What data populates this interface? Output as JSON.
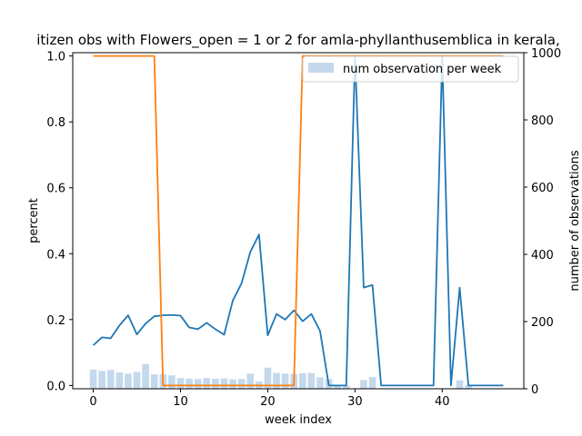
{
  "chart_data": {
    "type": "line",
    "title": "itizen obs with Flowers_open = 1 or 2 for amla-phyllanthusemblica in kerala,",
    "xlabel": "week index",
    "ylabel_left": "percent",
    "ylabel_right": "number of observations",
    "xlim": [
      -2.35,
      49.35
    ],
    "ylim_left": [
      -0.01,
      1.01
    ],
    "ylim_right": [
      0,
      1000
    ],
    "x_ticks": [
      0,
      10,
      20,
      30,
      40
    ],
    "y_ticks_left": [
      "0.0",
      "0.2",
      "0.4",
      "0.6",
      "0.8",
      "1.0"
    ],
    "y_ticks_right": [
      "0",
      "200",
      "400",
      "600",
      "800",
      "1000"
    ],
    "grid": false,
    "legend": {
      "placement": "top-right",
      "entries": [
        "num observation per week"
      ]
    },
    "colors": {
      "blue_line": "#1f77b4",
      "orange_line": "#ff7f0e",
      "bars": "#c5d9ec"
    },
    "series": [
      {
        "axis": "left",
        "color": "#1f77b4",
        "x": [
          0,
          1,
          2,
          3,
          4,
          5,
          6,
          7,
          8,
          9,
          10,
          11,
          12,
          13,
          14,
          15,
          16,
          17,
          18,
          19,
          20,
          21,
          22,
          23,
          24,
          25,
          26,
          27,
          28,
          29,
          30,
          31,
          32,
          33,
          34,
          35,
          36,
          37,
          38,
          39,
          40,
          41,
          42,
          43,
          44,
          45,
          46,
          47
        ],
        "values": [
          0.122,
          0.146,
          0.143,
          0.182,
          0.213,
          0.155,
          0.188,
          0.21,
          0.213,
          0.214,
          0.212,
          0.176,
          0.171,
          0.19,
          0.171,
          0.154,
          0.258,
          0.31,
          0.405,
          0.458,
          0.152,
          0.217,
          0.2,
          0.228,
          0.195,
          0.217,
          0.165,
          0.0,
          0.0,
          0.0,
          1.0,
          0.297,
          0.305,
          0.0,
          0.0,
          0.0,
          0.0,
          0.0,
          0.0,
          0.0,
          1.0,
          0.0,
          0.297,
          0.0,
          0.0,
          0.0,
          0.0,
          0.0
        ]
      },
      {
        "axis": "left",
        "color": "#ff7f0e",
        "x": [
          0,
          1,
          2,
          3,
          4,
          5,
          6,
          7,
          8,
          9,
          10,
          11,
          12,
          13,
          14,
          15,
          16,
          17,
          18,
          19,
          20,
          21,
          22,
          23,
          24,
          25,
          26,
          27,
          28,
          29,
          30,
          31,
          32,
          33,
          34,
          35,
          36,
          37,
          38,
          39,
          40,
          41,
          42,
          43,
          44,
          45,
          46,
          47
        ],
        "values": [
          1,
          1,
          1,
          1,
          1,
          1,
          1,
          1,
          0,
          0,
          0,
          0,
          0,
          0,
          0,
          0,
          0,
          0,
          0,
          0,
          0,
          0,
          0,
          0,
          1,
          1,
          1,
          1,
          1,
          1,
          1,
          1,
          1,
          1,
          1,
          1,
          1,
          1,
          1,
          1,
          1,
          1,
          1,
          1,
          1,
          1,
          1,
          1
        ]
      },
      {
        "axis": "right",
        "name": "num observation per week",
        "type": "bar",
        "x": [
          0,
          1,
          2,
          3,
          4,
          5,
          6,
          7,
          8,
          9,
          10,
          11,
          12,
          13,
          14,
          15,
          16,
          17,
          18,
          19,
          20,
          21,
          22,
          23,
          24,
          25,
          26,
          27,
          28,
          29,
          30,
          31,
          32,
          33,
          34,
          35,
          36,
          37,
          38,
          39,
          40,
          41,
          42,
          43,
          44,
          45,
          46,
          47
        ],
        "values": [
          57,
          53,
          56,
          49,
          45,
          50,
          74,
          43,
          43,
          40,
          32,
          30,
          29,
          32,
          30,
          31,
          28,
          29,
          45,
          22,
          63,
          47,
          45,
          44,
          46,
          47,
          34,
          29,
          11,
          10,
          0,
          26,
          35,
          0,
          0,
          0,
          0,
          0,
          0,
          0,
          0,
          0,
          25,
          11,
          0,
          0,
          0,
          0
        ]
      }
    ]
  }
}
